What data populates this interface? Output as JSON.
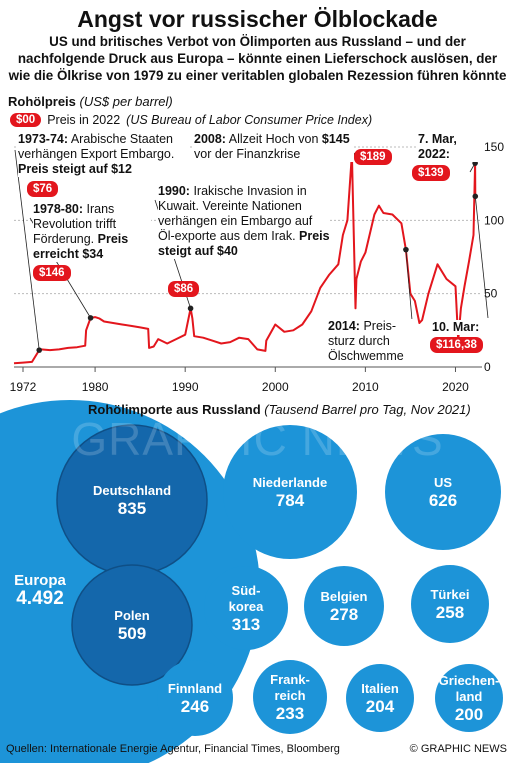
{
  "header": {
    "title": "Angst vor russischer Ölblockade",
    "subtitle": "US und britisches Verbot von Ölimporten aus Russland – und der nachfolgende Druck aus Europa – könnte einen Lieferschock auslösen, der wie die Ölkrise von 1979 zu einer veritablen globalen Rezession führen könnte"
  },
  "price_chart": {
    "title_bold": "Rohölpreis",
    "title_unit": "(US$ per barrel)",
    "legend_badge": "$00",
    "legend_text_a": "Preis in 2022",
    "legend_text_b": "(US Bureau of Labor Consumer Price Index)"
  },
  "annotations": {
    "a1973_bold": "1973-74:",
    "a1973_text": " Arabische Staaten verhängen Export Embargo.",
    "a1973_bold2": "Preis steigt auf $12",
    "a1973_badge": "$76",
    "a1978_bold": "1978-80:",
    "a1978_text": " Irans Revolution trifft Förderung. ",
    "a1978_bold2": "Preis erreicht $34",
    "a1978_badge": "$146",
    "a1990_bold": "1990:",
    "a1990_text": " Irakische Invasion in Kuwait. Vereinte Nationen verhängen ein Embargo auf Öl-exporte aus dem Irak. ",
    "a1990_bold2": "Preis steigt auf $40",
    "a1990_badge": "$86",
    "a2008_bold": "2008:",
    "a2008_text": " Allzeit Hoch von ",
    "a2008_bold2": "$145",
    "a2008_text2": "vor der Finanzkrise",
    "a2008_badge": "$189",
    "a2014_bold": "2014:",
    "a2014_text": " Preis-sturz durch Ölschwemme",
    "a2022_bold": "7. Mar, 2022:",
    "a2022_badge": "$139",
    "a2022b_bold": "10. Mar:",
    "a2022b_badge": "$116,38"
  },
  "chart_data": [
    {
      "type": "line",
      "title": "Rohölpreis",
      "ylabel": "US$ per barrel",
      "x_ticks": [
        "1972",
        "1980",
        "1990",
        "2000",
        "2010",
        "2020"
      ],
      "y_ticks": [
        "150",
        "100",
        "50",
        "0"
      ],
      "xlim": [
        1971,
        2022.5
      ],
      "ylim": [
        0,
        150
      ],
      "series": [
        {
          "x": [
            1971,
            1972,
            1973,
            1973.8,
            1974,
            1975,
            1976,
            1977,
            1978,
            1978.9,
            1979,
            1979.5,
            1980,
            1980.5,
            1981,
            1982,
            1983,
            1984,
            1985,
            1985.9,
            1986,
            1986.5,
            1987,
            1988,
            1989,
            1990,
            1990.6,
            1990.8,
            1991,
            1992,
            1993,
            1994,
            1995,
            1996,
            1997,
            1998,
            1998.9,
            1999,
            2000,
            2001,
            2002,
            2003,
            2004,
            2005,
            2006,
            2007,
            2007.5,
            2008,
            2008.5,
            2008.9,
            2009,
            2009.5,
            2010,
            2011,
            2011.5,
            2012,
            2013,
            2014,
            2014.5,
            2015,
            2015.5,
            2016,
            2016.3,
            2017,
            2018,
            2019,
            2020,
            2020.3,
            2020.6,
            2021,
            2021.5,
            2022,
            2022.18,
            2022.2
          ],
          "values": [
            2.5,
            3.0,
            3.5,
            11.5,
            12.0,
            11.5,
            12.0,
            13.0,
            13.5,
            14.5,
            25.0,
            33.5,
            34.0,
            33.0,
            31.0,
            30.0,
            29.0,
            28.0,
            27.0,
            26.0,
            13.0,
            14.0,
            19.0,
            16.0,
            19.0,
            22.0,
            40.0,
            33.0,
            21.0,
            20.0,
            18.0,
            16.0,
            17.0,
            20.0,
            19.0,
            12.0,
            11.0,
            18.0,
            29.0,
            24.0,
            25.0,
            29.0,
            38.0,
            54.0,
            63.0,
            70.0,
            90.0,
            100.0,
            145.0,
            40.0,
            60.0,
            72.0,
            78.0,
            104.0,
            110.0,
            105.0,
            104.0,
            98.0,
            80.0,
            50.0,
            45.0,
            30.0,
            32.0,
            50.0,
            70.0,
            60.0,
            55.0,
            18.0,
            40.0,
            55.0,
            72.0,
            90.0,
            139.0,
            116.38
          ]
        }
      ]
    },
    {
      "type": "bubble",
      "title": "Rohölimporte aus Russland",
      "unit": "Tausend Barrel pro Tag, Nov 2021",
      "categories": [
        "Europa",
        "Deutschland",
        "Polen",
        "Niederlande",
        "US",
        "Süd-korea",
        "Belgien",
        "Türkei",
        "Finnland",
        "Frank-reich",
        "Italien",
        "Griechen-land"
      ],
      "values": [
        "4.492",
        "835",
        "509",
        "784",
        "626",
        "313",
        "278",
        "258",
        "246",
        "233",
        "204",
        "200"
      ]
    }
  ],
  "footer": {
    "sources": "Quellen: Internationale Energie Agentur, Financial Times, Bloomberg",
    "credit": "© GRAPHIC NEWS",
    "watermark": "GRAPHIC NEWS"
  },
  "colors": {
    "red": "#e3161d",
    "bubble_light": "#1d94d8",
    "bubble_dark": "#1467ab",
    "grid": "#bbbbbb"
  }
}
